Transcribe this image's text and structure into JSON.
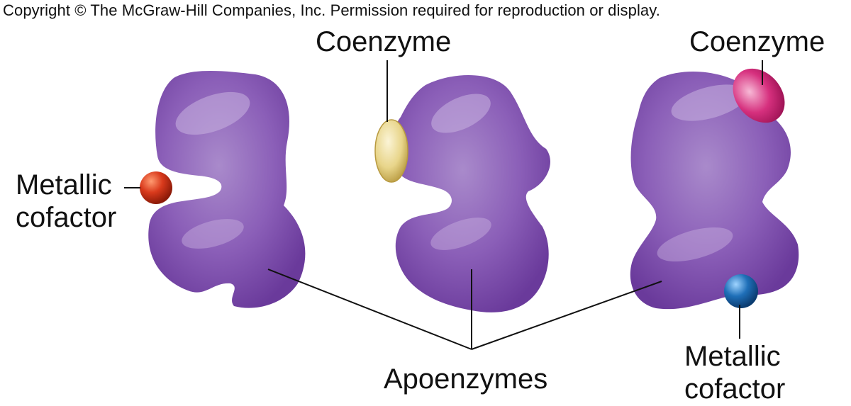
{
  "copyright": "Copyright © The McGraw-Hill Companies, Inc. Permission required for reproduction or display.",
  "labels": {
    "coenzyme_middle": "Coenzyme",
    "coenzyme_right": "Coenzyme",
    "metallic_left_line1": "Metallic",
    "metallic_left_line2": "cofactor",
    "metallic_right_line1": "Metallic",
    "metallic_right_line2": "cofactor",
    "apoenzymes": "Apoenzymes"
  },
  "colors": {
    "apoenzyme": "#7f4fae",
    "apoenzyme_highlight": "#c9b2e0",
    "coenzyme_yellow": "#e8d58a",
    "coenzyme_pink": "#d6307e",
    "cofactor_red": "#d93a1c",
    "cofactor_blue": "#1f6fb8"
  }
}
